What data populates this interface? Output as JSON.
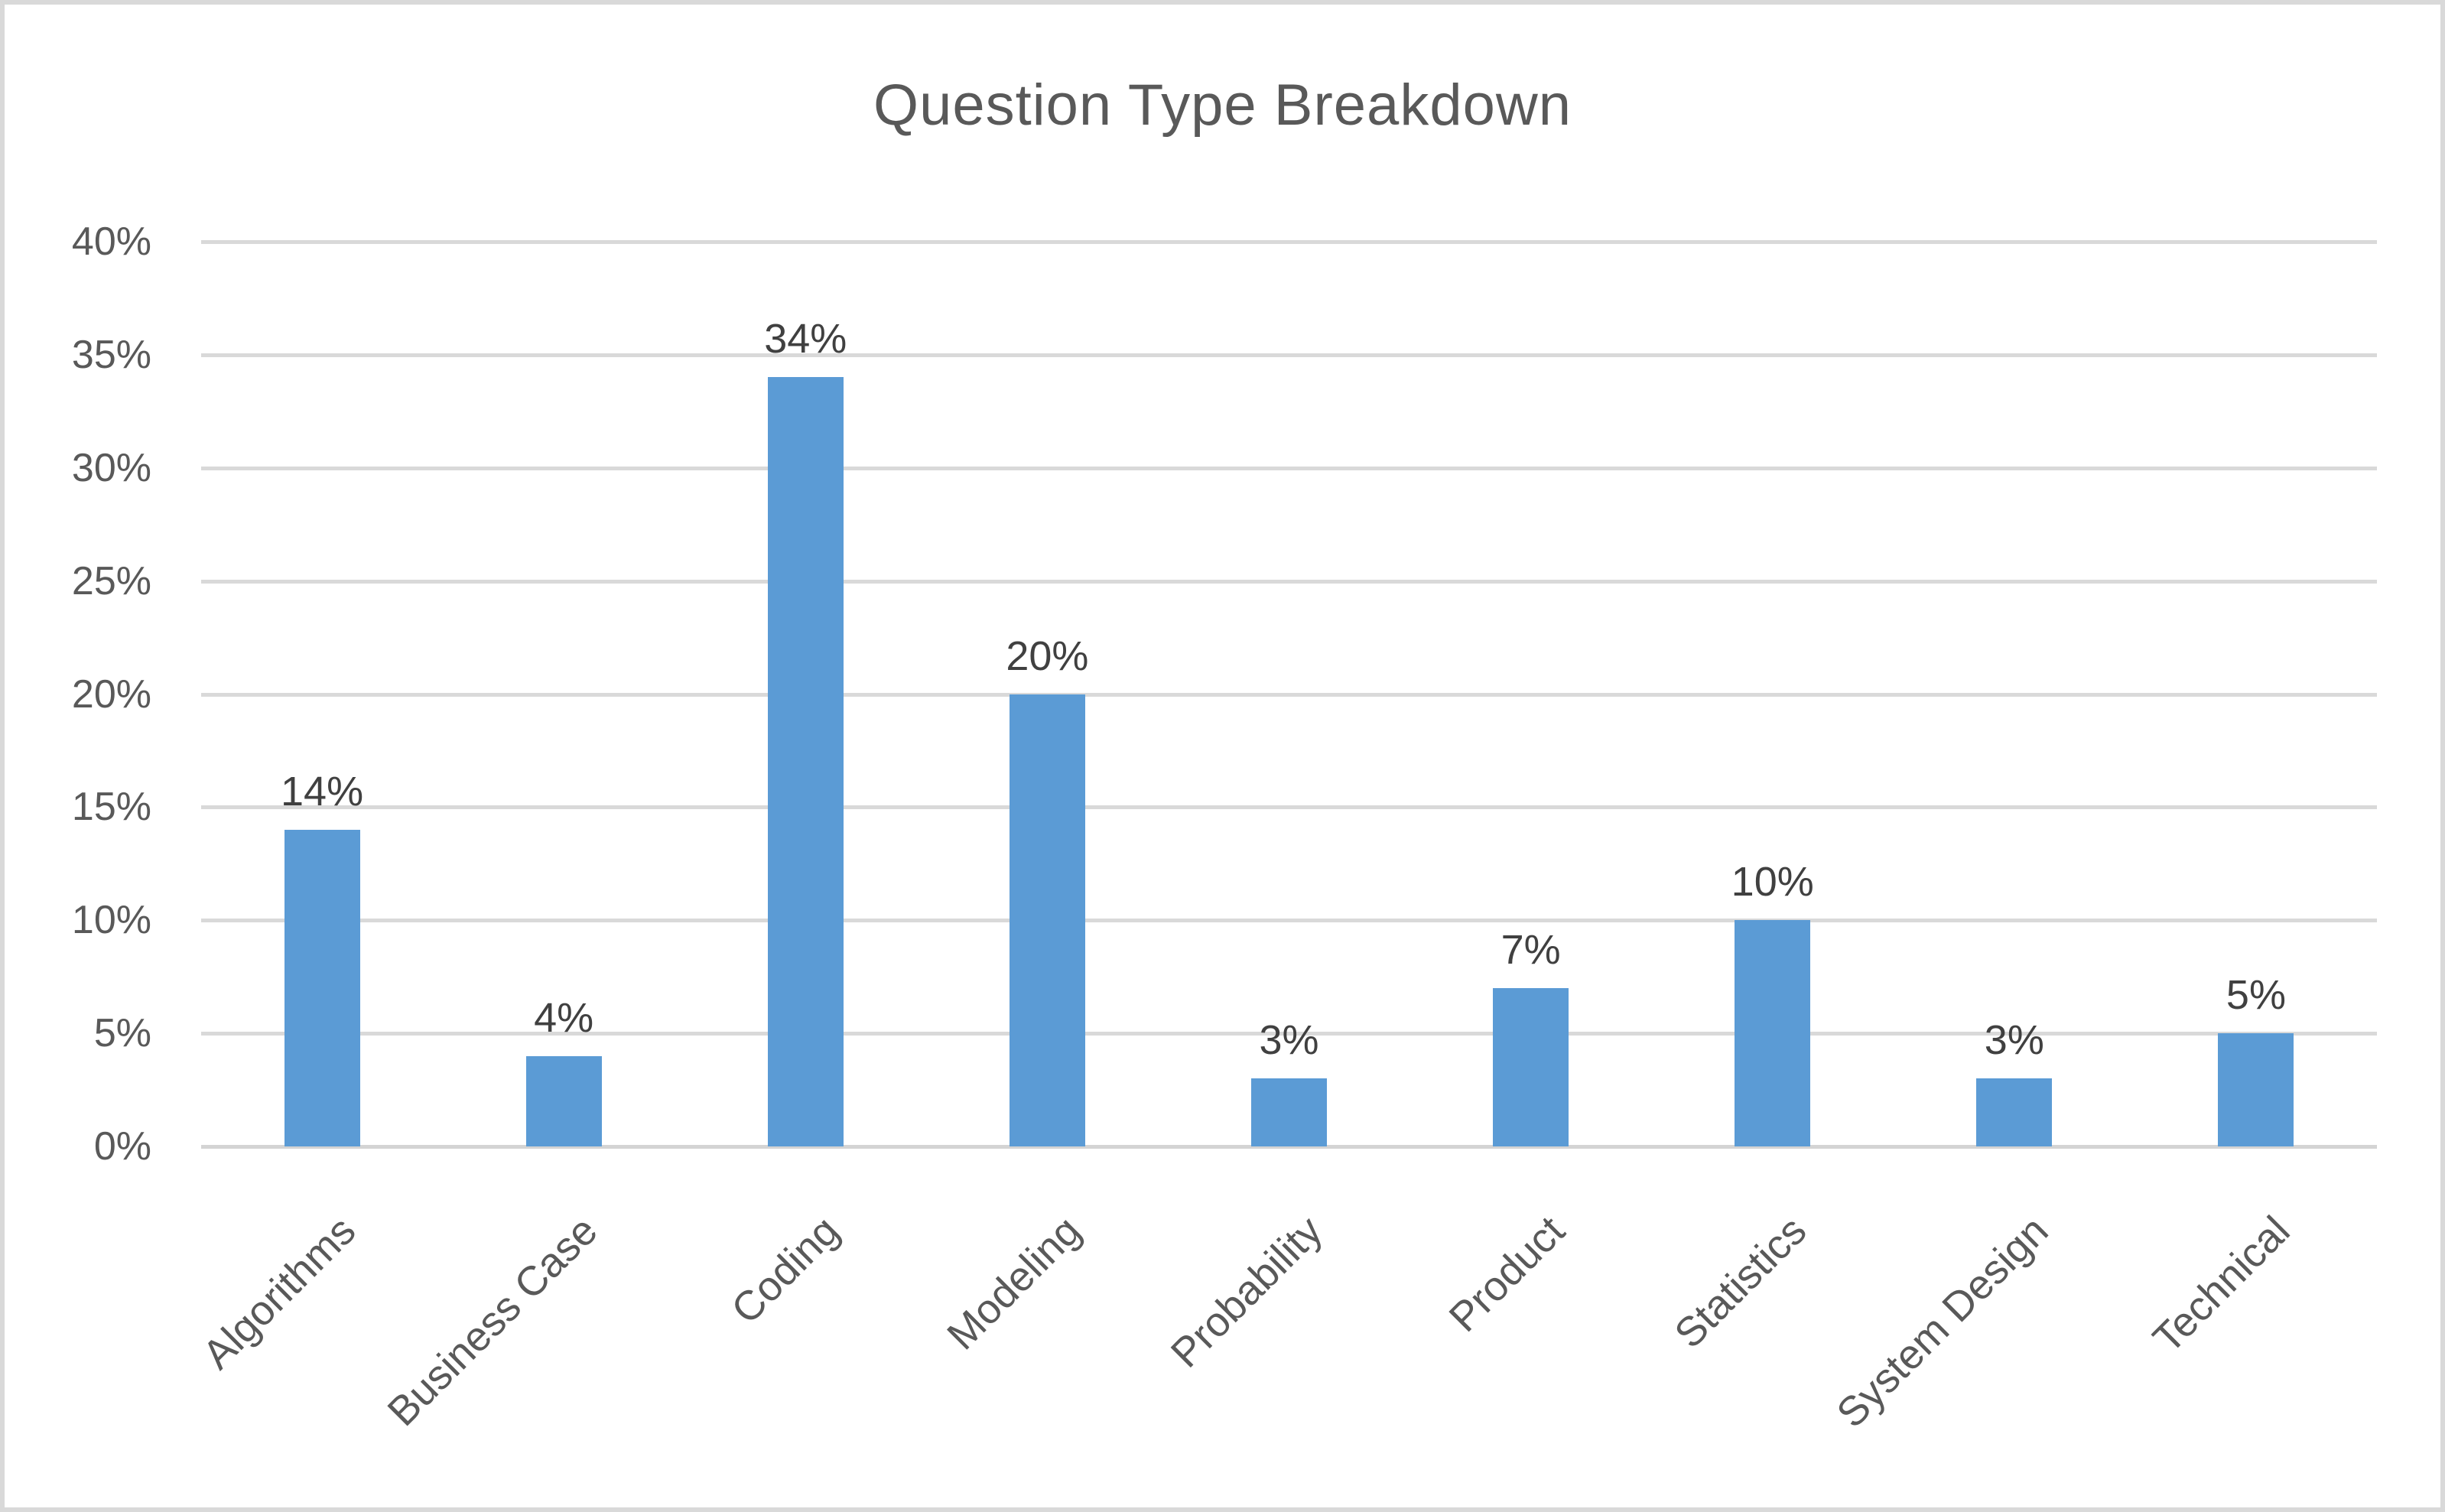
{
  "chart_data": {
    "type": "bar",
    "title": "Question Type Breakdown",
    "categories": [
      "Algorithms",
      "Business Case",
      "Coding",
      "Modeling",
      "Probability",
      "Product",
      "Statistics",
      "System Design",
      "Technical"
    ],
    "values": [
      14,
      4,
      34,
      20,
      3,
      7,
      10,
      3,
      5
    ],
    "data_labels": [
      "14%",
      "4%",
      "34%",
      "20%",
      "3%",
      "7%",
      "10%",
      "3%",
      "5%"
    ],
    "y_ticks": [
      "40%",
      "35%",
      "30%",
      "25%",
      "20%",
      "15%",
      "10%",
      "5%",
      "0%"
    ],
    "xlabel": "",
    "ylabel": "",
    "ylim": [
      0,
      40
    ],
    "y_tick_step": 5,
    "grid": "horizontal",
    "legend": "none",
    "colors": {
      "bar": "#5B9BD5",
      "gridline": "#D9D9D9",
      "axis_line": "#D4D4D4",
      "title_text": "#595959",
      "tick_text": "#595959",
      "category_text": "#595959",
      "data_label_text": "#404040",
      "frame_border": "#D9D9D9",
      "background": "#FFFFFF"
    }
  }
}
